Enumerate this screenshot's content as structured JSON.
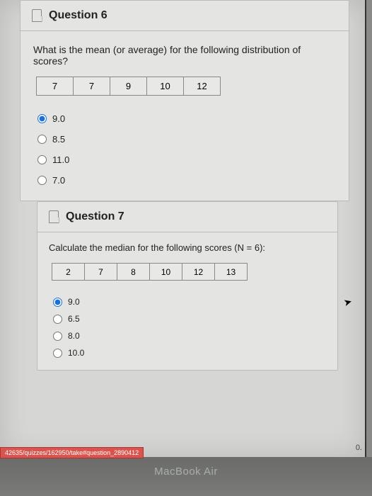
{
  "q6": {
    "title": "Question 6",
    "prompt": "What is the mean (or average) for the following distribution of scores?",
    "scores": [
      "7",
      "7",
      "9",
      "10",
      "12"
    ],
    "options": [
      "9.0",
      "8.5",
      "11.0",
      "7.0"
    ],
    "selected": 0
  },
  "q7": {
    "title": "Question 7",
    "prompt": "Calculate the median for the following scores (N = 6):",
    "scores": [
      "2",
      "7",
      "8",
      "10",
      "12",
      "13"
    ],
    "options": [
      "9.0",
      "6.5",
      "8.0",
      "10.0"
    ],
    "selected": 0
  },
  "url": "42635/quizzes/162950/take#question_2890412",
  "bottom_right": "0.",
  "brand": "MacBook Air"
}
